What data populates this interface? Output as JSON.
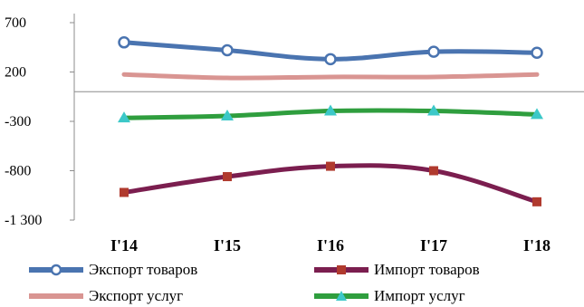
{
  "chart_data": {
    "type": "line",
    "categories": [
      "I'14",
      "I'15",
      "I'16",
      "I'17",
      "I'18"
    ],
    "ylim": [
      -1300,
      700
    ],
    "yticks": [
      700,
      200,
      -300,
      -800,
      -1300
    ],
    "ytick_labels": [
      "700",
      "200",
      "-300",
      "-800",
      "-1 300"
    ],
    "grid": false,
    "legend_position": "bottom",
    "series": [
      {
        "name": "Экспорт товаров",
        "values": [
          500,
          420,
          330,
          405,
          395
        ],
        "color": "#4a74b0",
        "marker": "circle"
      },
      {
        "name": "Импорт товаров",
        "values": [
          -1020,
          -860,
          -755,
          -800,
          -1115
        ],
        "color": "#7b1e4f",
        "marker": "square",
        "marker_color": "#b03a2e"
      },
      {
        "name": "Экспорт услуг",
        "values": [
          175,
          140,
          150,
          150,
          175
        ],
        "color": "#d99592",
        "marker": "none"
      },
      {
        "name": "Импорт услуг",
        "values": [
          -265,
          -245,
          -195,
          -195,
          -230
        ],
        "color": "#2f9e3e",
        "marker": "triangle",
        "marker_color": "#3cc8c8"
      }
    ]
  }
}
